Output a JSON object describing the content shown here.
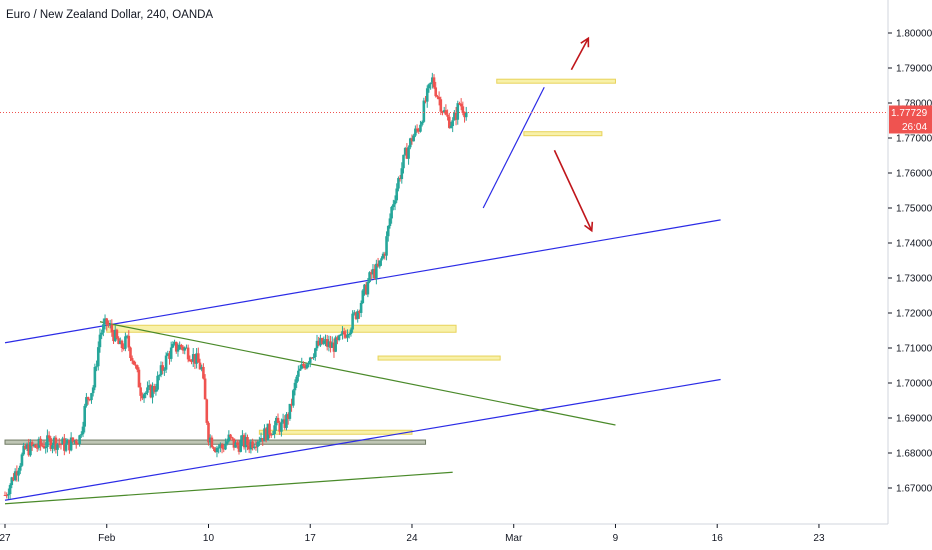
{
  "chart_data": {
    "type": "candlestick",
    "title": "Euro / New Zealand Dollar, 240, OANDA",
    "ylim": [
      1.6625,
      1.8175
    ],
    "y_ticks": [
      "1.80000",
      "1.79000",
      "1.78000",
      "1.77000",
      "1.76000",
      "1.75000",
      "1.74000",
      "1.73000",
      "1.72000",
      "1.71000",
      "1.70000",
      "1.69000",
      "1.68000",
      "1.67000"
    ],
    "x_ticks": [
      "27",
      "Feb",
      "10",
      "17",
      "24",
      "Mar",
      "9",
      "16",
      "23"
    ],
    "last_price": "1.77729",
    "last_price_value": 1.77729,
    "countdown": "26:04",
    "colors": {
      "up": "#26a69a",
      "down": "#ef5350",
      "price_line": "#ef5350",
      "channel": "#2b2be6",
      "trend": "#4a8a2a",
      "zone_yellow": "#f7ef9a",
      "zone_gray": "#a9b39c",
      "arrow": "#c0161b",
      "axis_bg": "#ffffff"
    },
    "series_path": [
      [
        0,
        1.668
      ],
      [
        3,
        1.681
      ],
      [
        5,
        1.682
      ],
      [
        7,
        1.6835
      ],
      [
        9,
        1.682
      ],
      [
        11,
        1.6845
      ],
      [
        12,
        1.695
      ],
      [
        13,
        1.699
      ],
      [
        14,
        1.714
      ],
      [
        15,
        1.717
      ],
      [
        16,
        1.714
      ],
      [
        17,
        1.71
      ],
      [
        18,
        1.712
      ],
      [
        19,
        1.706
      ],
      [
        20,
        1.698
      ],
      [
        21,
        1.697
      ],
      [
        22,
        1.6985
      ],
      [
        23,
        1.703
      ],
      [
        24,
        1.708
      ],
      [
        25,
        1.71
      ],
      [
        26,
        1.7105
      ],
      [
        27,
        1.709
      ],
      [
        28,
        1.707
      ],
      [
        29,
        1.704
      ],
      [
        30,
        1.685
      ],
      [
        31,
        1.682
      ],
      [
        32,
        1.6815
      ],
      [
        33,
        1.684
      ],
      [
        34,
        1.682
      ],
      [
        35,
        1.683
      ],
      [
        36,
        1.6825
      ],
      [
        37,
        1.684
      ],
      [
        38,
        1.685
      ],
      [
        39,
        1.6865
      ],
      [
        40,
        1.688
      ],
      [
        41,
        1.6875
      ],
      [
        42,
        1.692
      ],
      [
        43,
        1.7015
      ],
      [
        44,
        1.705
      ],
      [
        45,
        1.708
      ],
      [
        46,
        1.7105
      ],
      [
        47,
        1.7115
      ],
      [
        48,
        1.7105
      ],
      [
        49,
        1.711
      ],
      [
        50,
        1.714
      ],
      [
        51,
        1.717
      ],
      [
        52,
        1.721
      ],
      [
        53,
        1.726
      ],
      [
        54,
        1.731
      ],
      [
        55,
        1.7325
      ],
      [
        56,
        1.738
      ],
      [
        57,
        1.75
      ],
      [
        58,
        1.758
      ],
      [
        59,
        1.765
      ],
      [
        60,
        1.77
      ],
      [
        61,
        1.773
      ],
      [
        62,
        1.7805
      ],
      [
        63,
        1.7865
      ],
      [
        64,
        1.781
      ],
      [
        65,
        1.776
      ],
      [
        66,
        1.774
      ],
      [
        67,
        1.78
      ],
      [
        68,
        1.7775
      ]
    ],
    "x_range": [
      0,
      129
    ],
    "x_tick_positions": [
      0,
      15,
      30,
      45,
      60,
      75,
      90,
      105,
      120
    ],
    "zones": [
      {
        "x1": 15,
        "x2": 66.5,
        "y1": 1.7145,
        "y2": 1.7165,
        "color": "yellow"
      },
      {
        "x1": 55,
        "x2": 73,
        "y1": 1.707,
        "y2": 1.7077,
        "color": "yellow"
      },
      {
        "x1": 37.5,
        "x2": 60,
        "y1": 1.6855,
        "y2": 1.6865,
        "color": "yellow"
      },
      {
        "x1": 0,
        "x2": 62,
        "y1": 1.6825,
        "y2": 1.6837,
        "color": "gray"
      },
      {
        "x1": 72.5,
        "x2": 90,
        "y1": 1.786,
        "y2": 1.7868,
        "color": "yellow"
      },
      {
        "x1": 76.5,
        "x2": 88,
        "y1": 1.771,
        "y2": 1.7718,
        "color": "yellow"
      }
    ],
    "lines": [
      {
        "x1": 0,
        "y1": 1.7115,
        "x2": 105.5,
        "y2": 1.7466,
        "color": "channel"
      },
      {
        "x1": 0,
        "y1": 1.6665,
        "x2": 105.5,
        "y2": 1.701,
        "color": "channel"
      },
      {
        "x1": 14,
        "y1": 1.7175,
        "x2": 90,
        "y2": 1.688,
        "color": "trend"
      },
      {
        "x1": 0,
        "y1": 1.6655,
        "x2": 66,
        "y2": 1.6745,
        "color": "trend"
      },
      {
        "x1": 70.5,
        "y1": 1.75,
        "x2": 79.5,
        "y2": 1.7845,
        "color": "channel"
      }
    ],
    "arrows": [
      {
        "x1": 83.5,
        "y1": 1.7895,
        "x2": 86,
        "y2": 1.7985
      },
      {
        "x1": 81,
        "y1": 1.7665,
        "x2": 86.5,
        "y2": 1.7435
      }
    ]
  }
}
